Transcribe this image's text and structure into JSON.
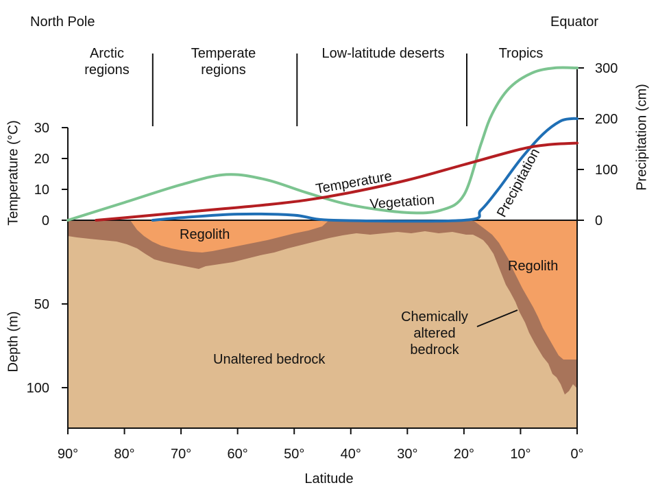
{
  "labels": {
    "north_pole": "North Pole",
    "equator": "Equator",
    "zones": [
      "Arctic\nregions",
      "Temperate\nregions",
      "Low-latitude deserts",
      "Tropics"
    ],
    "curve_temperature": "Temperature",
    "curve_vegetation": "Vegetation",
    "curve_precipitation": "Precipitation",
    "regolith": "Regolith",
    "regolith_tropics": "Regolith",
    "chemically_altered": "Chemically\naltered\nbedrock",
    "unaltered": "Unaltered bedrock",
    "y_left_top": "Temperature (°C)",
    "y_left_bottom": "Depth (m)",
    "y_right": "Precipitation (cm)",
    "x_axis": "Latitude"
  },
  "colors": {
    "temperature": "#b41e22",
    "vegetation": "#7cc490",
    "precipitation": "#1f6fb5",
    "regolith": "#f4a064",
    "altered_bedrock": "#a8745a",
    "bedrock": "#dfbb90"
  },
  "chart_data": {
    "type": "line",
    "x": [
      90,
      80,
      70,
      60,
      50,
      40,
      30,
      20,
      10,
      0
    ],
    "x_tick_labels": [
      "90°",
      "80°",
      "70°",
      "60°",
      "50°",
      "40°",
      "30°",
      "20°",
      "10°",
      "0°"
    ],
    "xlabel": "Latitude",
    "xlim": [
      90,
      0
    ],
    "temperature_axis": {
      "label": "Temperature (°C)",
      "ticks": [
        0,
        10,
        20,
        30
      ],
      "ylim": [
        0,
        30
      ]
    },
    "precipitation_axis": {
      "label": "Precipitation (cm)",
      "ticks": [
        0,
        100,
        200,
        300
      ],
      "ylim": [
        0,
        300
      ]
    },
    "depth_axis": {
      "label": "Depth (m)",
      "ticks": [
        50,
        100
      ]
    },
    "zone_boundaries": [
      75,
      49.5,
      19.5
    ],
    "series": [
      {
        "name": "Temperature",
        "axis": "temperature",
        "x": [
          85,
          80,
          70,
          62,
          55,
          48,
          40,
          30,
          20,
          10,
          5,
          0
        ],
        "y": [
          0,
          0.8,
          2.5,
          3.8,
          5,
          6.5,
          9,
          13,
          18,
          23,
          24.5,
          25
        ]
      },
      {
        "name": "Vegetation",
        "axis": "precipitation",
        "x": [
          90,
          80,
          70,
          62,
          55,
          48,
          40,
          30,
          24,
          20,
          17,
          15,
          12,
          8,
          4,
          0
        ],
        "y": [
          0,
          35,
          70,
          90,
          80,
          55,
          30,
          15,
          20,
          50,
          150,
          210,
          260,
          290,
          300,
          300
        ]
      },
      {
        "name": "Precipitation",
        "axis": "precipitation",
        "x": [
          75,
          70,
          60,
          50,
          43,
          20,
          17,
          14,
          10,
          6,
          3,
          1,
          0
        ],
        "y": [
          0,
          5,
          12,
          10,
          0,
          0,
          20,
          60,
          120,
          170,
          195,
          200,
          200
        ]
      }
    ]
  }
}
